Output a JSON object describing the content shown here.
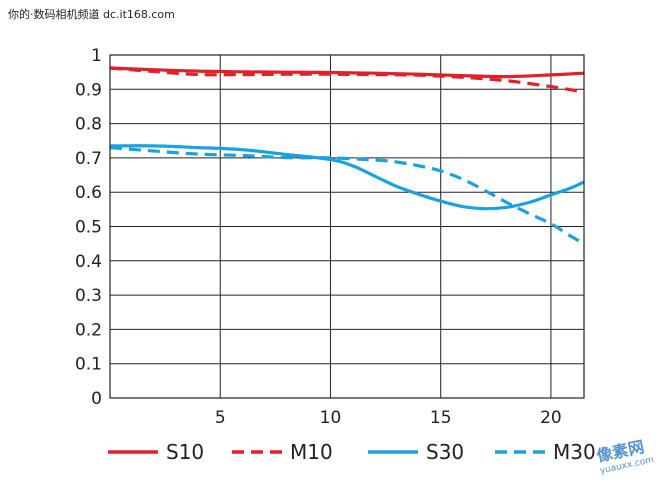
{
  "header_text": "你的·数码相机频道 dc.it168.com",
  "watermark": {
    "main": "像素网",
    "sub": "yuauxx.com"
  },
  "chart_data": {
    "type": "line",
    "title": "",
    "xlabel": "",
    "ylabel": "",
    "xlim": [
      0,
      21.5
    ],
    "ylim": [
      0,
      1
    ],
    "x_ticks": [
      5,
      10,
      15,
      20
    ],
    "y_ticks": [
      0,
      0.1,
      0.2,
      0.3,
      0.4,
      0.5,
      0.6,
      0.7,
      0.8,
      0.9,
      1
    ],
    "y_tick_labels": [
      "0",
      "0.1",
      "0.2",
      "0.3",
      "0.4",
      "0.5",
      "0.6",
      "0.7",
      "0.8",
      "0.9",
      "1"
    ],
    "grid": true,
    "legend_position": "bottom",
    "series": [
      {
        "name": "S10",
        "color": "#e2202a",
        "dash": false,
        "x": [
          0,
          2,
          4,
          6,
          8,
          10,
          12,
          14,
          16,
          18,
          20,
          21.5
        ],
        "y": [
          0.962,
          0.957,
          0.953,
          0.951,
          0.95,
          0.949,
          0.947,
          0.944,
          0.94,
          0.937,
          0.942,
          0.947
        ]
      },
      {
        "name": "M10",
        "color": "#e2202a",
        "dash": true,
        "x": [
          0,
          2,
          4,
          6,
          8,
          10,
          12,
          14,
          16,
          18,
          20,
          21.5
        ],
        "y": [
          0.962,
          0.952,
          0.943,
          0.943,
          0.944,
          0.944,
          0.943,
          0.941,
          0.935,
          0.925,
          0.908,
          0.892
        ]
      },
      {
        "name": "S30",
        "color": "#1aa2e0",
        "dash": false,
        "x": [
          0,
          2,
          4,
          6,
          8,
          10,
          11,
          12,
          13,
          14,
          15,
          16,
          17,
          18,
          19,
          20,
          21,
          21.5
        ],
        "y": [
          0.735,
          0.735,
          0.73,
          0.724,
          0.71,
          0.695,
          0.677,
          0.647,
          0.617,
          0.594,
          0.574,
          0.558,
          0.552,
          0.556,
          0.57,
          0.592,
          0.615,
          0.63
        ]
      },
      {
        "name": "M30",
        "color": "#1aa2e0",
        "dash": true,
        "x": [
          0,
          2,
          4,
          6,
          8,
          10,
          12,
          13,
          14,
          15,
          16,
          17,
          18,
          19,
          20,
          21,
          21.5
        ],
        "y": [
          0.73,
          0.72,
          0.711,
          0.707,
          0.701,
          0.7,
          0.694,
          0.688,
          0.677,
          0.662,
          0.638,
          0.605,
          0.57,
          0.538,
          0.508,
          0.468,
          0.45
        ]
      }
    ]
  }
}
